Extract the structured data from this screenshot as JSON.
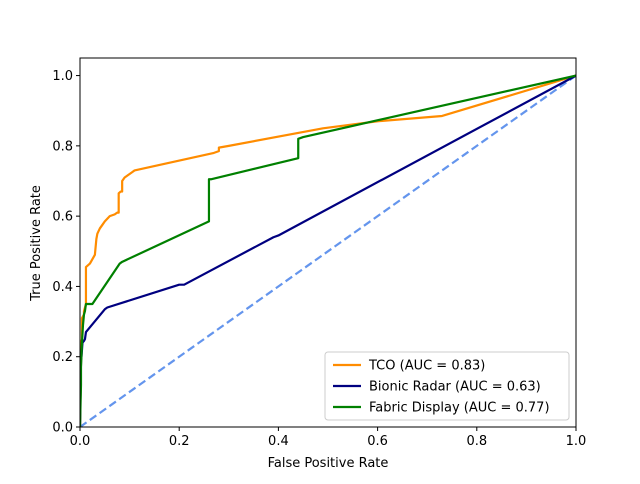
{
  "chart_data": {
    "type": "line",
    "xlabel": "False Positive Rate",
    "ylabel": "True Positive Rate",
    "xlim": [
      0,
      1
    ],
    "ylim": [
      0,
      1.05
    ],
    "xticks": [
      0,
      0.2,
      0.4,
      0.6,
      0.8,
      1.0
    ],
    "xtick_labels": [
      "0.0",
      "0.2",
      "0.4",
      "0.6",
      "0.8",
      "1.0"
    ],
    "yticks": [
      0,
      0.2,
      0.4,
      0.6,
      0.8,
      1.0
    ],
    "ytick_labels": [
      "0.0",
      "0.2",
      "0.4",
      "0.6",
      "0.8",
      "1.0"
    ],
    "grid": false,
    "legend_position": "lower-right",
    "series": [
      {
        "name": "TCO (AUC = 0.83)",
        "color": "#ff8c00",
        "x": [
          0,
          0.002,
          0.002,
          0.004,
          0.004,
          0.008,
          0.008,
          0.012,
          0.012,
          0.02,
          0.03,
          0.033,
          0.035,
          0.04,
          0.045,
          0.05,
          0.06,
          0.07,
          0.075,
          0.078,
          0.078,
          0.082,
          0.085,
          0.085,
          0.09,
          0.095,
          0.1,
          0.105,
          0.11,
          0.27,
          0.28,
          0.28,
          0.3,
          0.49,
          0.6,
          0.73,
          1.0
        ],
        "y": [
          0,
          0.19,
          0.24,
          0.25,
          0.31,
          0.32,
          0.33,
          0.35,
          0.455,
          0.465,
          0.49,
          0.535,
          0.55,
          0.565,
          0.575,
          0.585,
          0.6,
          0.605,
          0.61,
          0.61,
          0.665,
          0.67,
          0.67,
          0.7,
          0.71,
          0.715,
          0.72,
          0.725,
          0.73,
          0.78,
          0.785,
          0.795,
          0.8,
          0.85,
          0.87,
          0.885,
          1.0
        ]
      },
      {
        "name": "Bionic Radar (AUC = 0.63)",
        "color": "#000080",
        "x": [
          0,
          0.002,
          0.003,
          0.005,
          0.008,
          0.01,
          0.012,
          0.05,
          0.055,
          0.2,
          0.21,
          0.39,
          0.4,
          1.0
        ],
        "y": [
          0,
          0.19,
          0.2,
          0.24,
          0.245,
          0.25,
          0.27,
          0.335,
          0.34,
          0.405,
          0.405,
          0.54,
          0.545,
          1.0
        ]
      },
      {
        "name": "Fabric Display (AUC = 0.77)",
        "color": "#008000",
        "x": [
          0,
          0.002,
          0.002,
          0.004,
          0.006,
          0.008,
          0.01,
          0.012,
          0.025,
          0.08,
          0.085,
          0.26,
          0.26,
          0.265,
          0.44,
          0.44,
          0.45,
          1.0
        ],
        "y": [
          0,
          0.12,
          0.17,
          0.24,
          0.29,
          0.32,
          0.33,
          0.35,
          0.35,
          0.465,
          0.47,
          0.585,
          0.705,
          0.705,
          0.765,
          0.82,
          0.825,
          1.0
        ]
      }
    ],
    "reference_line": {
      "x": [
        0,
        1
      ],
      "y": [
        0,
        1
      ],
      "color": "#6495ed",
      "style": "dashed"
    }
  }
}
